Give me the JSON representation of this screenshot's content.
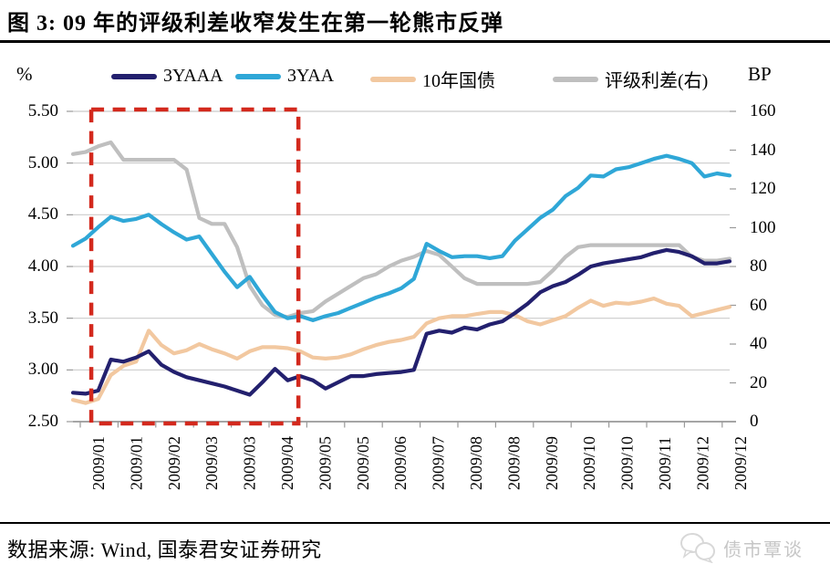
{
  "title": "图 3: 09 年的评级利差收窄发生在第一轮熊市反弹",
  "left_axis": {
    "unit": "%",
    "tick_labels": [
      "5.50",
      "5.00",
      "4.50",
      "4.00",
      "3.50",
      "3.00",
      "2.50"
    ]
  },
  "right_axis": {
    "unit": "BP",
    "tick_labels": [
      "160",
      "140",
      "120",
      "100",
      "80",
      "60",
      "40",
      "20",
      "0"
    ]
  },
  "x_axis": {
    "tick_labels": [
      "2009/01",
      "2009/01",
      "2009/02",
      "2009/03",
      "2009/03",
      "2009/04",
      "2009/05",
      "2009/05",
      "2009/06",
      "2009/07",
      "2009/08",
      "2009/08",
      "2009/09",
      "2009/10",
      "2009/10",
      "2009/11",
      "2009/12",
      "2009/12"
    ]
  },
  "source": "数据来源: Wind, 国泰君安证券研究",
  "watermark": "债市覃谈",
  "colors": {
    "grid": "#cbcbcb",
    "axis": "#9a9a9a",
    "highlight_box": "#d3291d"
  },
  "chart_data": {
    "type": "line",
    "title": "09年的评级利差收窄发生在第一轮熊市反弹",
    "x_unit": "weekly observations, Jan 2009 - Dec 2009 (week index 0-52)",
    "left_ylabel": "%",
    "right_ylabel": "BP",
    "left_ylim": [
      2.5,
      5.5
    ],
    "right_ylim": [
      0,
      160
    ],
    "grid": "horizontal",
    "legend_position": "top",
    "series": [
      {
        "name": "3YAAA",
        "axis": "left",
        "unit": "%",
        "color": "#23206e",
        "values": [
          2.78,
          2.77,
          2.8,
          3.1,
          3.08,
          3.12,
          3.18,
          3.05,
          2.98,
          2.93,
          2.9,
          2.87,
          2.84,
          2.8,
          2.76,
          2.88,
          3.01,
          2.9,
          2.94,
          2.9,
          2.82,
          2.88,
          2.94,
          2.94,
          2.96,
          2.97,
          2.98,
          3.0,
          3.35,
          3.38,
          3.36,
          3.41,
          3.39,
          3.44,
          3.47,
          3.55,
          3.64,
          3.75,
          3.81,
          3.85,
          3.92,
          4.0,
          4.03,
          4.05,
          4.07,
          4.09,
          4.13,
          4.16,
          4.14,
          4.1,
          4.03,
          4.03,
          4.05
        ]
      },
      {
        "name": "3YAA",
        "axis": "left",
        "unit": "%",
        "color": "#2fa7d7",
        "values": [
          4.2,
          4.27,
          4.38,
          4.48,
          4.44,
          4.46,
          4.5,
          4.41,
          4.33,
          4.26,
          4.29,
          4.12,
          3.95,
          3.8,
          3.9,
          3.72,
          3.56,
          3.5,
          3.52,
          3.48,
          3.52,
          3.55,
          3.6,
          3.65,
          3.7,
          3.74,
          3.79,
          3.88,
          4.22,
          4.15,
          4.09,
          4.1,
          4.1,
          4.08,
          4.1,
          4.25,
          4.36,
          4.47,
          4.55,
          4.68,
          4.76,
          4.88,
          4.87,
          4.94,
          4.96,
          5.0,
          5.04,
          5.07,
          5.04,
          5.0,
          4.87,
          4.9,
          4.88
        ]
      },
      {
        "name": "10年国债",
        "axis": "left",
        "unit": "%",
        "color": "#f2c8a0",
        "values": [
          2.71,
          2.68,
          2.72,
          2.95,
          3.04,
          3.08,
          3.38,
          3.24,
          3.16,
          3.19,
          3.25,
          3.2,
          3.16,
          3.11,
          3.18,
          3.22,
          3.22,
          3.21,
          3.18,
          3.12,
          3.11,
          3.12,
          3.15,
          3.2,
          3.24,
          3.27,
          3.29,
          3.32,
          3.45,
          3.5,
          3.52,
          3.52,
          3.54,
          3.56,
          3.56,
          3.53,
          3.47,
          3.44,
          3.48,
          3.52,
          3.6,
          3.67,
          3.62,
          3.65,
          3.64,
          3.66,
          3.69,
          3.64,
          3.62,
          3.52,
          3.55,
          3.58,
          3.61
        ]
      },
      {
        "name": "评级利差(右)",
        "axis": "right",
        "unit": "BP",
        "color": "#bfbfbf",
        "values": [
          138,
          139,
          142,
          144,
          135,
          135,
          135,
          135,
          135,
          130,
          105,
          102,
          102,
          90,
          70,
          60,
          55,
          54,
          56,
          57,
          62,
          66,
          70,
          74,
          76,
          80,
          83,
          85,
          88,
          86,
          80,
          74,
          71,
          71,
          71,
          71,
          71,
          72,
          78,
          85,
          90,
          91,
          91,
          91,
          91,
          91,
          91,
          91,
          91,
          85,
          83,
          83,
          84
        ]
      }
    ],
    "annotation_box": {
      "shape": "dashed-rectangle",
      "color": "#d3291d",
      "x_weeks": [
        1.45,
        17.85
      ],
      "y_left_values": [
        2.5,
        5.5
      ]
    }
  }
}
